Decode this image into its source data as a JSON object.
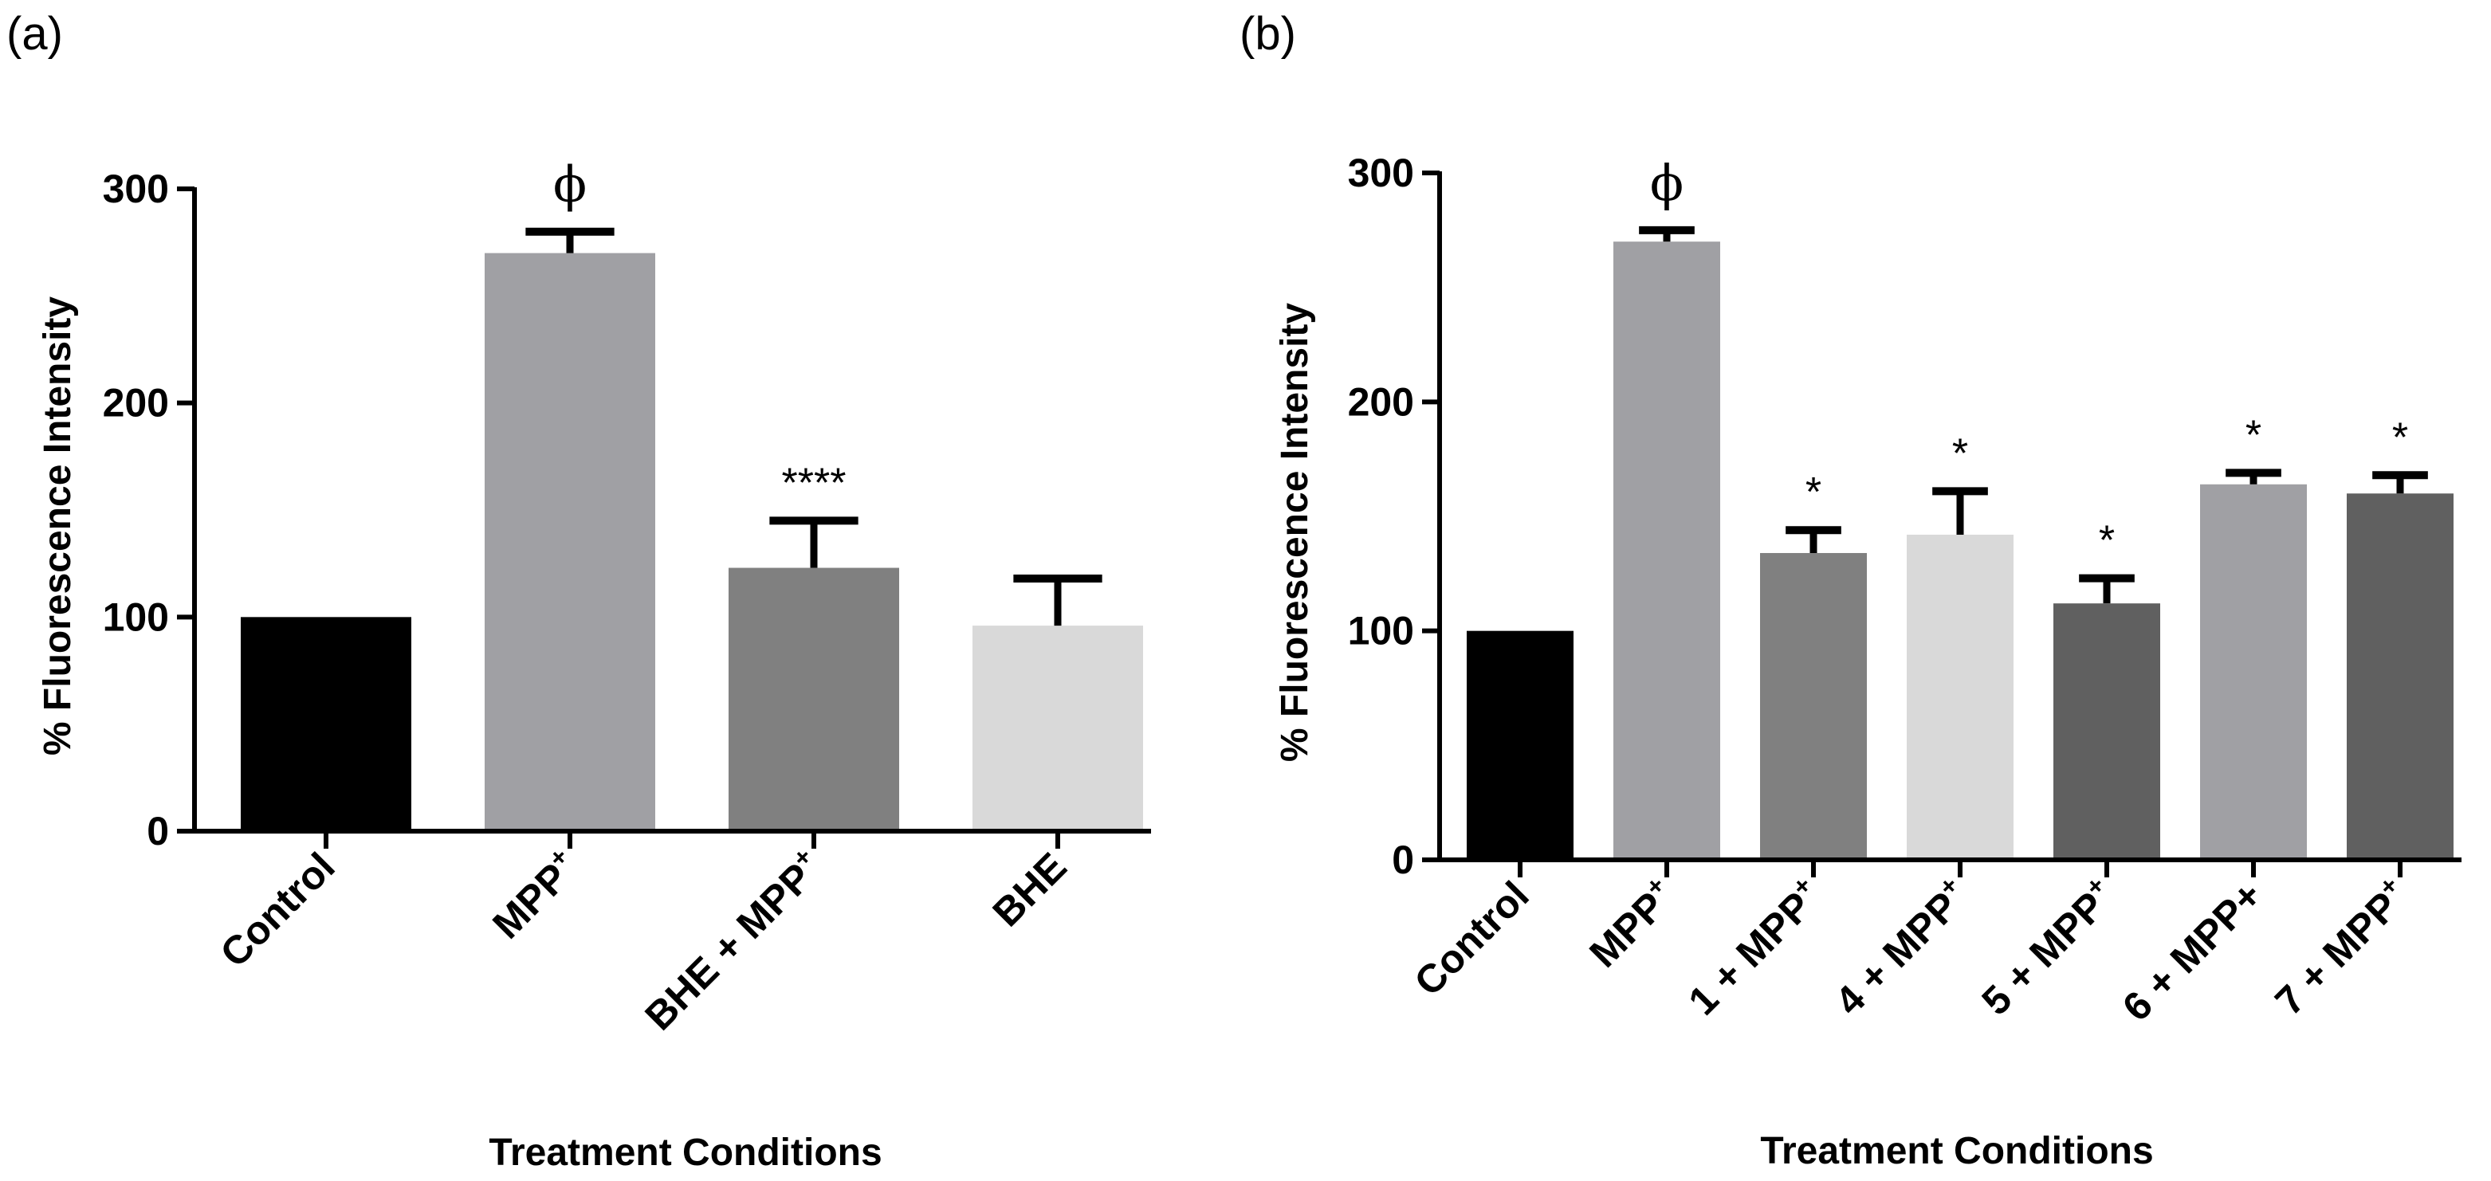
{
  "chart_data": [
    {
      "type": "bar",
      "panel_label": "(a)",
      "xlabel": "Treatment Conditions",
      "ylabel": "% Fluorescence Intensity",
      "ylim": [
        0,
        300
      ],
      "yticks": [
        "0",
        "100",
        "200",
        "300"
      ],
      "grid": false,
      "categories": [
        {
          "base": "Control",
          "sup": ""
        },
        {
          "base": "MPP",
          "sup": "+"
        },
        {
          "base": "BHE + MPP",
          "sup": "+"
        },
        {
          "base": "BHE",
          "sup": ""
        }
      ],
      "values": [
        100,
        270,
        123,
        96
      ],
      "errors": [
        0,
        10,
        22,
        22
      ],
      "annotations": [
        "",
        "ϕ",
        "****",
        ""
      ],
      "colors": [
        "#000000",
        "#a0a0a4",
        "#808080",
        "#d9d9d9"
      ]
    },
    {
      "type": "bar",
      "panel_label": "(b)",
      "xlabel": "Treatment Conditions",
      "ylabel": "% Fluorescence Intensity",
      "ylim": [
        0,
        300
      ],
      "yticks": [
        "0",
        "100",
        "200",
        "300"
      ],
      "grid": false,
      "categories": [
        {
          "base": "Control",
          "sup": ""
        },
        {
          "base": "MPP",
          "sup": "+"
        },
        {
          "base": "1 + MPP",
          "sup": "+"
        },
        {
          "base": "4 + MPP",
          "sup": "+"
        },
        {
          "base": "5 + MPP",
          "sup": "+"
        },
        {
          "base": "6 + MPP+",
          "sup": ""
        },
        {
          "base": "7 + MPP",
          "sup": "+"
        }
      ],
      "values": [
        100,
        270,
        134,
        142,
        112,
        164,
        160
      ],
      "errors": [
        0,
        5,
        10,
        19,
        11,
        5,
        8
      ],
      "annotations": [
        "",
        "ϕ",
        "*",
        "*",
        "*",
        "*",
        "*"
      ],
      "colors": [
        "#000000",
        "#a0a0a4",
        "#808080",
        "#d9d9d9",
        "#606060",
        "#a0a0a4",
        "#606060"
      ]
    }
  ]
}
